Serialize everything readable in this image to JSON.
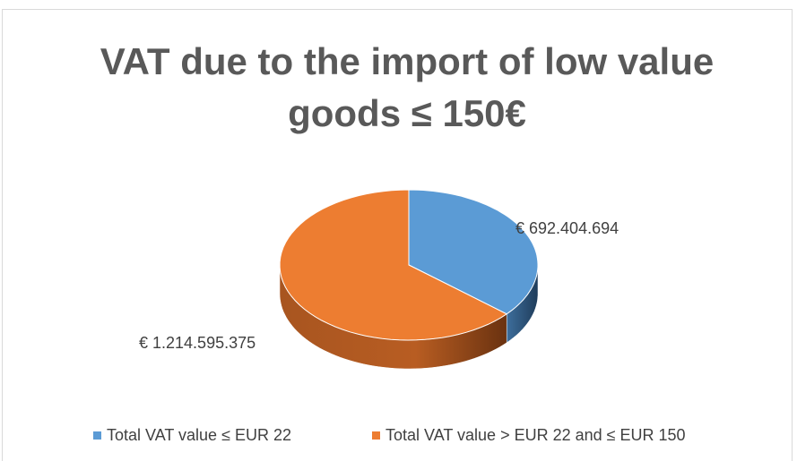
{
  "chart_data": {
    "type": "pie3d",
    "title": "VAT due to the import of low value goods ≤ 150€",
    "categories": [
      "Total VAT value ≤ EUR 22",
      "Total VAT value > EUR 22 and ≤ EUR 150"
    ],
    "values": [
      692404694,
      1214595375
    ],
    "value_labels": [
      "€ 692.404.694",
      "€ 1.214.595.375"
    ],
    "colors": [
      "#5b9bd5",
      "#ed7d31"
    ],
    "legend": "bottom"
  }
}
